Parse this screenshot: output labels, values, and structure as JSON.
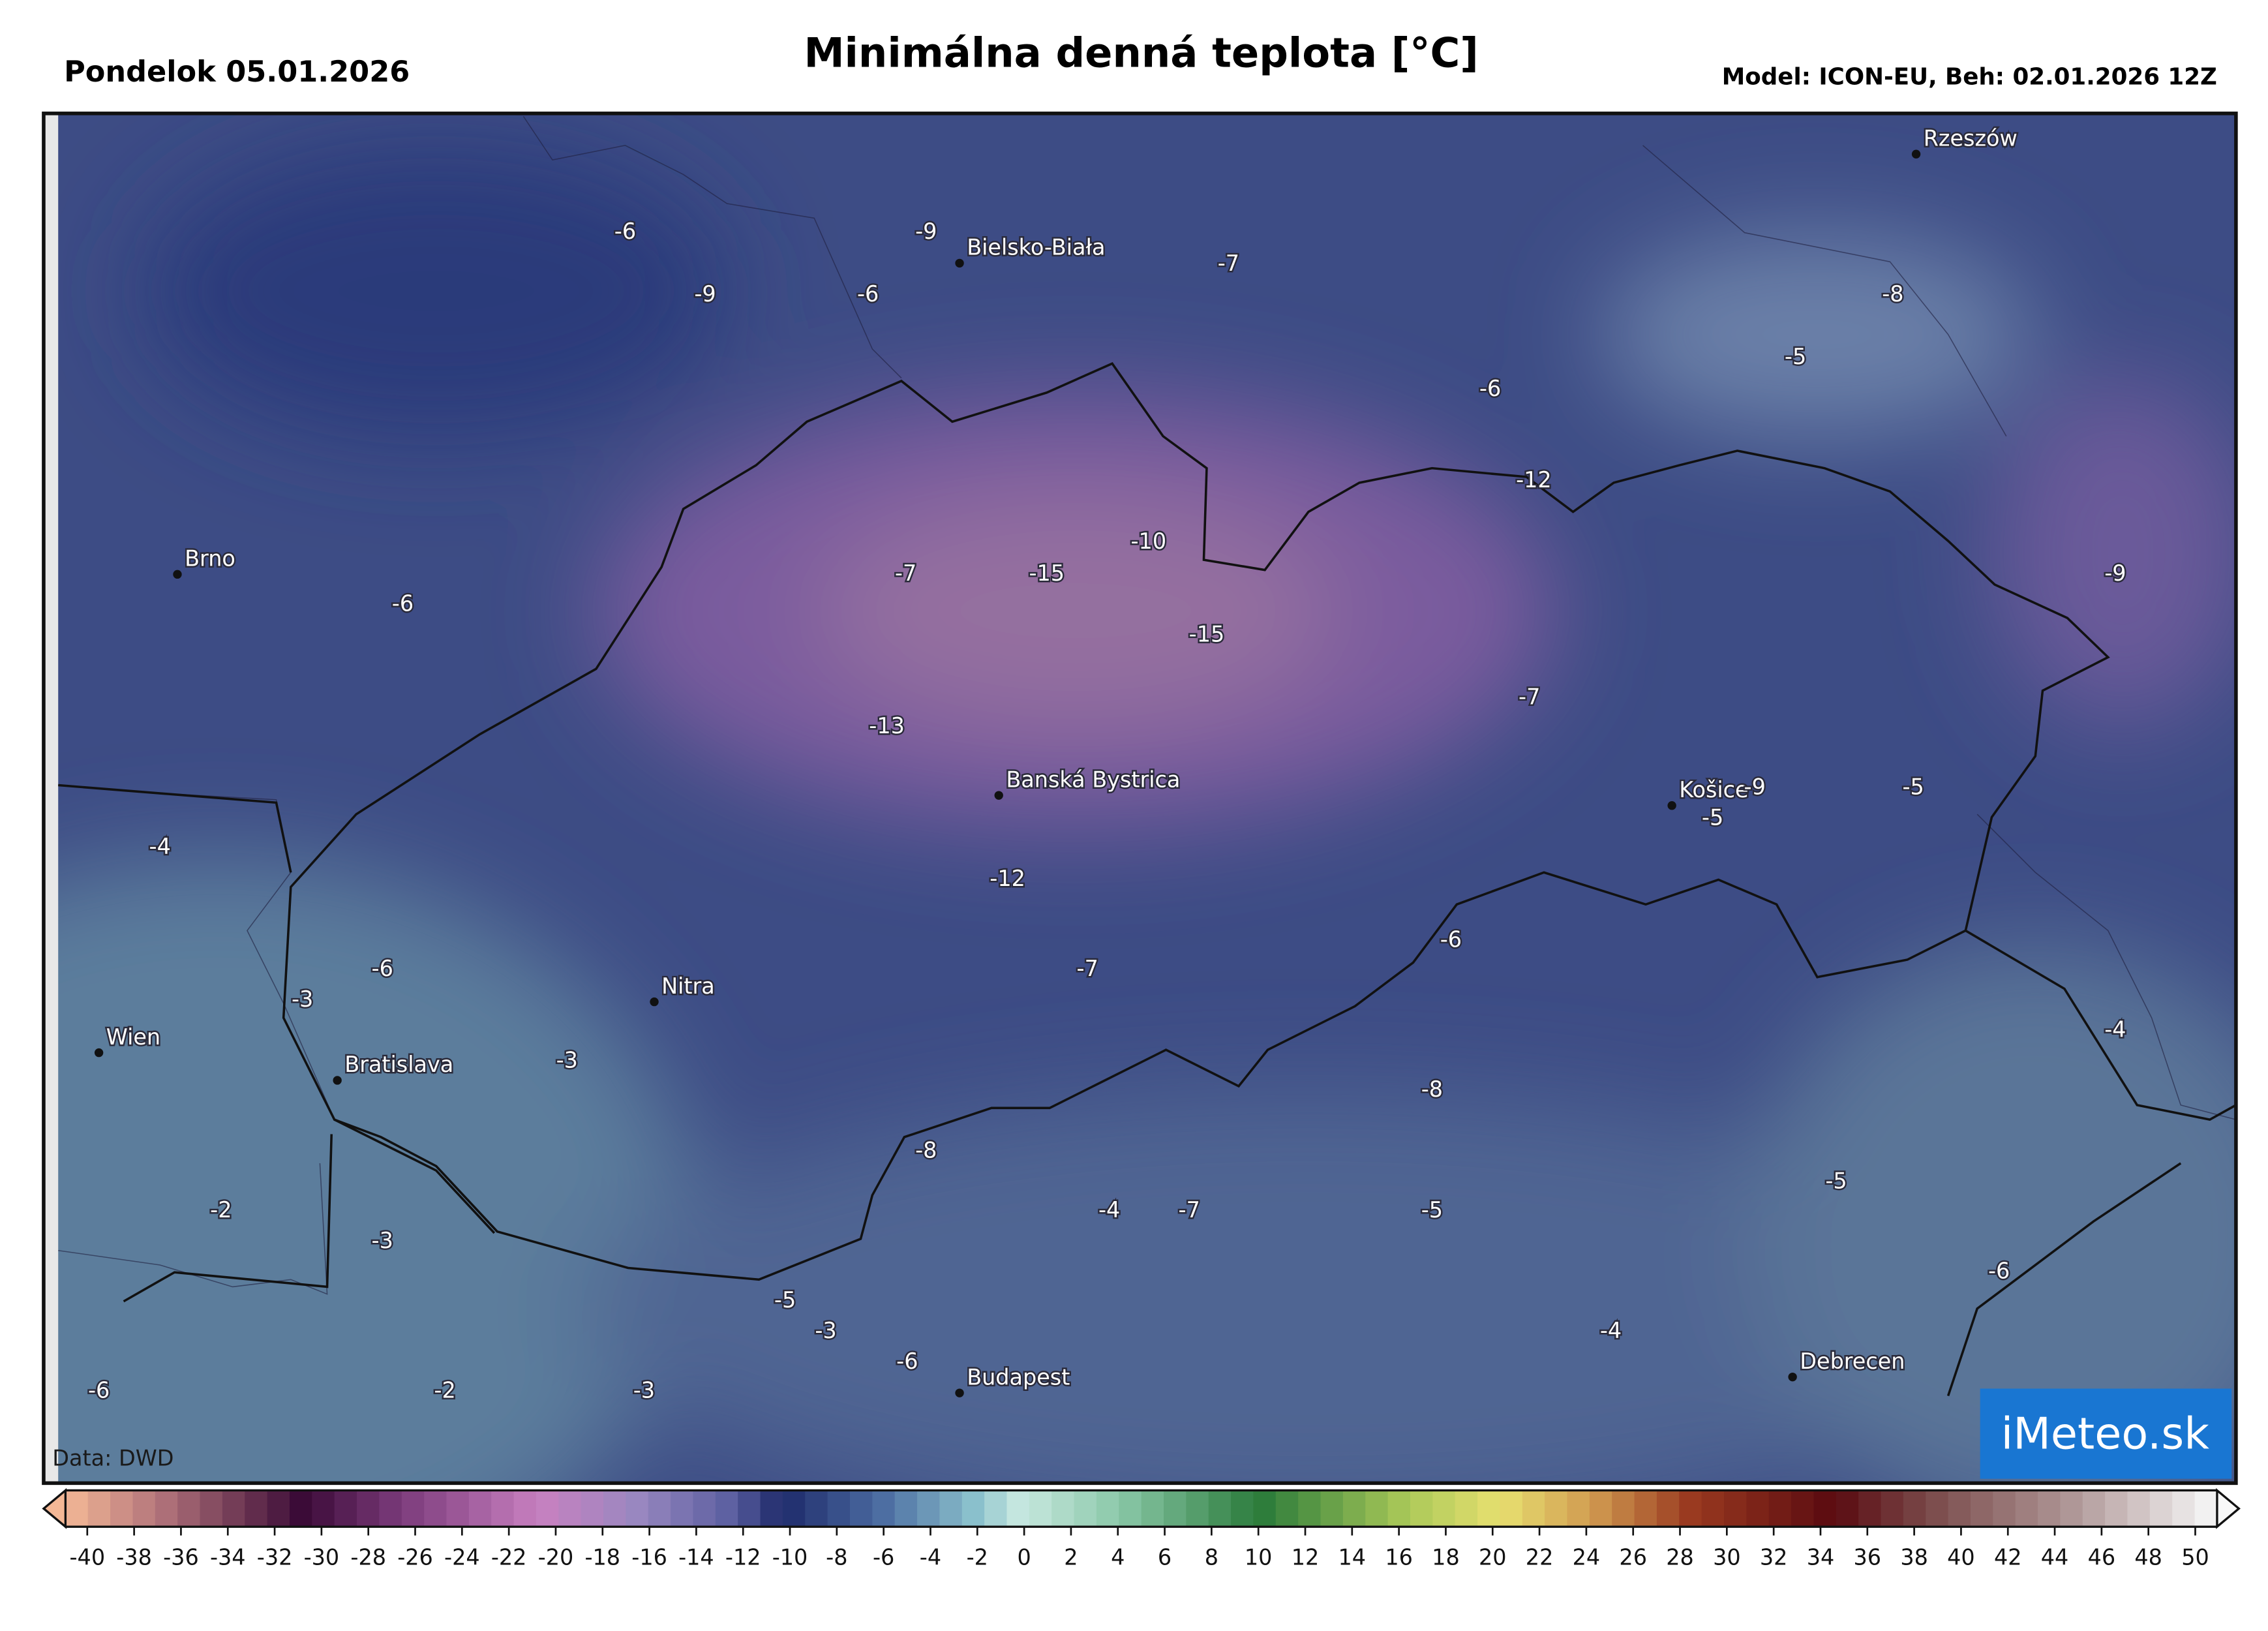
{
  "header": {
    "date": "Pondelok 05.01.2026",
    "title": "Minimálna denná teplota [°C]",
    "model": "Model: ICON-EU, Beh: 02.01.2026 12Z"
  },
  "map": {
    "cities": [
      "Rzeszów",
      "Bielsko-Biała",
      "Brno",
      "Wien",
      "Bratislava",
      "Nitra",
      "Banská Bystrica",
      "Košice",
      "Budapest",
      "Debrecen"
    ],
    "labels": [
      -6,
      -9,
      -7,
      -9,
      -6,
      -8,
      -5,
      -6,
      -12,
      -10,
      -7,
      -15,
      -9,
      -6,
      -15,
      -7,
      -13,
      -9,
      -5,
      -5,
      -4,
      -12,
      -6,
      -6,
      -7,
      -3,
      -4,
      -3,
      -8,
      -8,
      -5,
      -4,
      -7,
      -5,
      -2,
      -3,
      -6,
      -5,
      -3,
      -4,
      -6,
      -2,
      -3,
      -6
    ],
    "credit": "Data: DWD",
    "logo": "iMeteo.sk"
  },
  "colorbar": {
    "lim": [
      -40,
      50
    ],
    "ticks": [
      -40,
      -38,
      -36,
      -34,
      -32,
      -30,
      -28,
      -26,
      -24,
      -22,
      -20,
      -18,
      -16,
      -14,
      -12,
      -10,
      -8,
      -6,
      -4,
      -2,
      0,
      2,
      4,
      6,
      8,
      10,
      12,
      14,
      16,
      18,
      20,
      22,
      24,
      26,
      28,
      30,
      32,
      34,
      36,
      38,
      40,
      42,
      44,
      46,
      48,
      50
    ]
  }
}
